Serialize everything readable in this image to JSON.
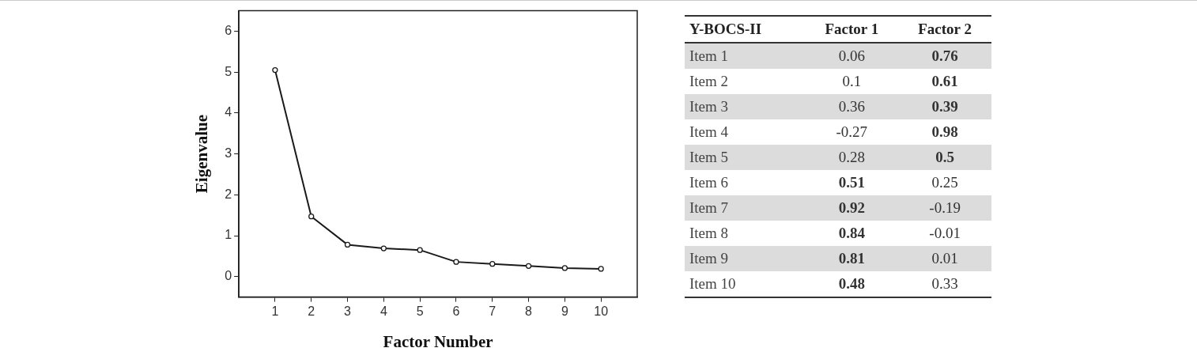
{
  "chart_data": [
    {
      "type": "line",
      "xlabel": "Factor Number",
      "ylabel": "Eigenvalue",
      "x": [
        1,
        2,
        3,
        4,
        5,
        6,
        7,
        8,
        9,
        10
      ],
      "series": [
        {
          "color": "#1a1a1a",
          "values": [
            5.05,
            1.47,
            0.78,
            0.69,
            0.65,
            0.36,
            0.31,
            0.26,
            0.21,
            0.19
          ]
        }
      ],
      "xlim": [
        0,
        11
      ],
      "xticks": [
        1,
        2,
        3,
        4,
        5,
        6,
        7,
        8,
        9,
        10
      ],
      "ylim": [
        -0.5,
        6.5
      ],
      "yticks": [
        0,
        1,
        2,
        3,
        4,
        5,
        6
      ],
      "grid": false,
      "legend": false,
      "marker": "circle",
      "line_style": "solid"
    },
    {
      "type": "other",
      "ylabel": "Y-BOCS-II",
      "categories": [
        "Item 1",
        "Item 2",
        "Item 3",
        "Item 4",
        "Item 5",
        "Item 6",
        "Item 7",
        "Item 8",
        "Item 9",
        "Item 10"
      ],
      "series": [
        {
          "name": "Factor 1",
          "values": [
            0.06,
            0.1,
            0.36,
            -0.27,
            0.28,
            0.51,
            0.92,
            0.84,
            0.81,
            0.48
          ]
        },
        {
          "name": "Factor 2",
          "values": [
            0.76,
            0.61,
            0.39,
            0.98,
            0.5,
            0.25,
            -0.19,
            -0.01,
            0.01,
            0.33
          ]
        }
      ],
      "data_labels": true
    }
  ]
}
